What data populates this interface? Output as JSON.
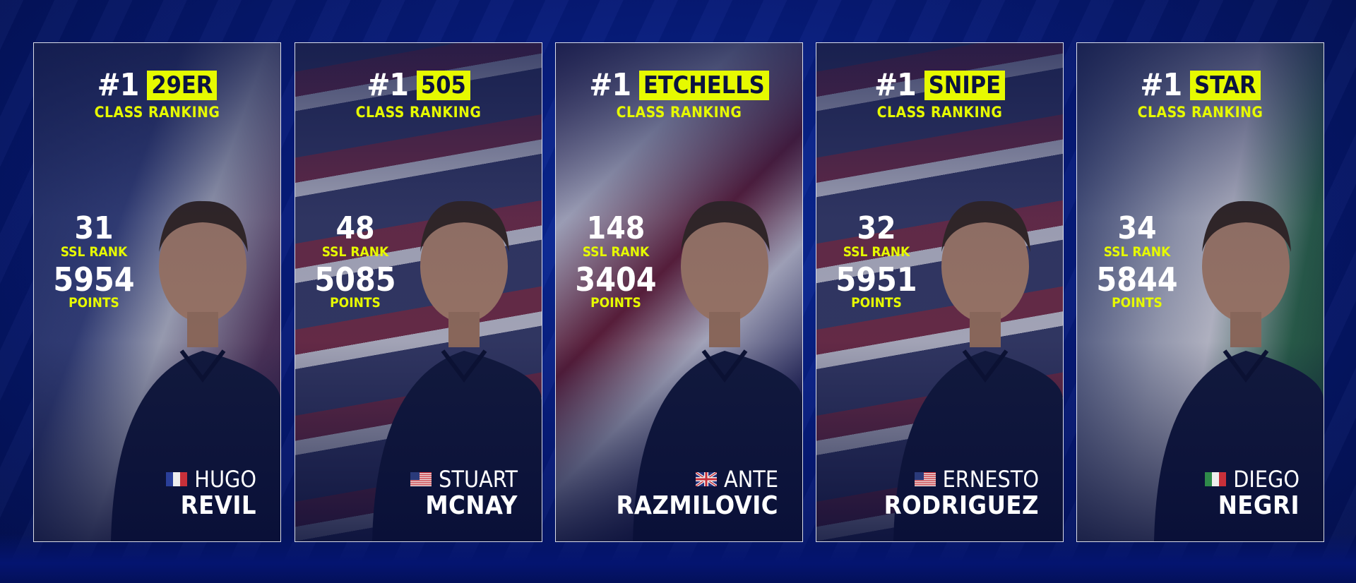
{
  "cards": [
    {
      "rank": "#1",
      "class": "29ER",
      "class_label": "CLASS RANKING",
      "ssl_rank": "31",
      "ssl_rank_label": "SSL RANK",
      "points": "5954",
      "points_label": "POINTS",
      "first_name": "HUGO",
      "last_name": "REVIL",
      "flag": "france-flag-icon"
    },
    {
      "rank": "#1",
      "class": "505",
      "class_label": "CLASS RANKING",
      "ssl_rank": "48",
      "ssl_rank_label": "SSL RANK",
      "points": "5085",
      "points_label": "POINTS",
      "first_name": "STUART",
      "last_name": "MCNAY",
      "flag": "usa-flag-icon"
    },
    {
      "rank": "#1",
      "class": "ETCHELLS",
      "class_label": "CLASS RANKING",
      "ssl_rank": "148",
      "ssl_rank_label": "SSL RANK",
      "points": "3404",
      "points_label": "POINTS",
      "first_name": "ANTE",
      "last_name": "RAZMILOVIC",
      "flag": "uk-flag-icon"
    },
    {
      "rank": "#1",
      "class": "SNIPE",
      "class_label": "CLASS RANKING",
      "ssl_rank": "32",
      "ssl_rank_label": "SSL RANK",
      "points": "5951",
      "points_label": "POINTS",
      "first_name": "ERNESTO",
      "last_name": "RODRIGUEZ",
      "flag": "usa-flag-icon"
    },
    {
      "rank": "#1",
      "class": "STAR",
      "class_label": "CLASS RANKING",
      "ssl_rank": "34",
      "ssl_rank_label": "SSL RANK",
      "points": "5844",
      "points_label": "POINTS",
      "first_name": "DIEGO",
      "last_name": "NEGRI",
      "flag": "italy-flag-icon"
    }
  ],
  "colors": {
    "accent": "#e6fa00",
    "background": "#061a78",
    "card_text": "#ffffff",
    "class_text": "#0b1240"
  }
}
